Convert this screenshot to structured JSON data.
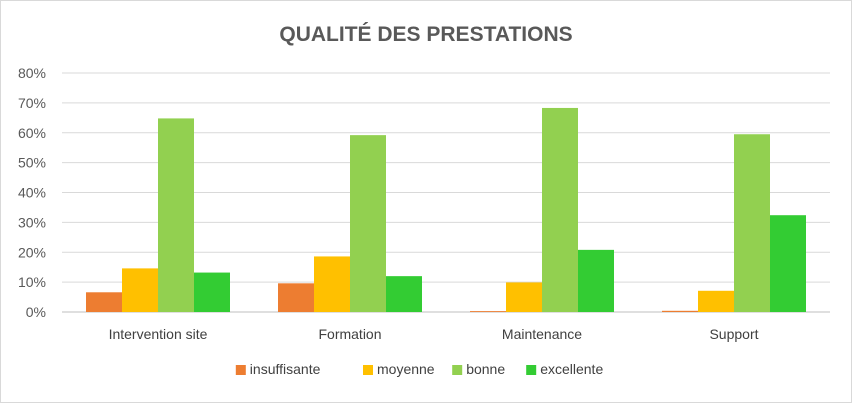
{
  "chart_data": {
    "type": "bar",
    "title": "QUALITÉ DES PRESTATIONS",
    "categories": [
      "Intervention site",
      "Formation",
      "Maintenance",
      "Support"
    ],
    "series": [
      {
        "name": "insuffisante",
        "color": "#ed7d31",
        "values": [
          0.066,
          0.096,
          0.003,
          0.004
        ]
      },
      {
        "name": "moyenne",
        "color": "#ffc000",
        "values": [
          0.146,
          0.186,
          0.099,
          0.071
        ]
      },
      {
        "name": "bonne",
        "color": "#92d050",
        "values": [
          0.648,
          0.592,
          0.683,
          0.595
        ]
      },
      {
        "name": "excellente",
        "color": "#33cc33",
        "values": [
          0.132,
          0.12,
          0.208,
          0.324
        ]
      }
    ],
    "ylim": [
      0,
      0.8
    ],
    "yticks": [
      "0%",
      "10%",
      "20%",
      "30%",
      "40%",
      "50%",
      "60%",
      "70%",
      "80%"
    ],
    "grid": true,
    "legend_position": "bottom"
  }
}
